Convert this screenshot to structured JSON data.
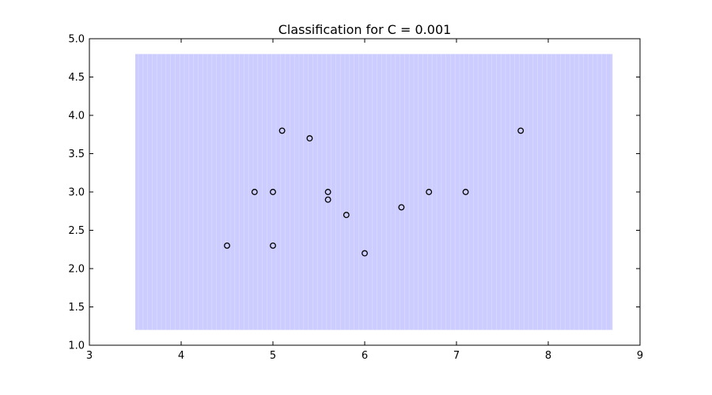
{
  "chart_data": {
    "type": "scatter",
    "title": "Classification for C = 0.001",
    "xlabel": "",
    "ylabel": "",
    "xlim": [
      3,
      9
    ],
    "ylim": [
      1.0,
      5.0
    ],
    "x_ticks": [
      3,
      4,
      5,
      6,
      7,
      8,
      9
    ],
    "x_tick_labels": [
      "3",
      "4",
      "5",
      "6",
      "7",
      "8",
      "9"
    ],
    "y_ticks": [
      1.0,
      1.5,
      2.0,
      2.5,
      3.0,
      3.5,
      4.0,
      4.5,
      5.0
    ],
    "y_tick_labels": [
      "1.0",
      "1.5",
      "2.0",
      "2.5",
      "3.0",
      "3.5",
      "4.0",
      "4.5",
      "5.0"
    ],
    "grid": false,
    "decision_region": {
      "x_range": [
        3.5,
        8.7
      ],
      "y_range": [
        1.2,
        4.8
      ],
      "color": "#ccccff"
    },
    "points": [
      {
        "x": 4.5,
        "y": 2.3
      },
      {
        "x": 4.8,
        "y": 3.0
      },
      {
        "x": 5.0,
        "y": 3.0
      },
      {
        "x": 5.0,
        "y": 2.3
      },
      {
        "x": 5.1,
        "y": 3.8
      },
      {
        "x": 5.4,
        "y": 3.7
      },
      {
        "x": 5.6,
        "y": 3.0
      },
      {
        "x": 5.6,
        "y": 2.9
      },
      {
        "x": 5.8,
        "y": 2.7
      },
      {
        "x": 6.0,
        "y": 2.2
      },
      {
        "x": 6.4,
        "y": 2.8
      },
      {
        "x": 6.7,
        "y": 3.0
      },
      {
        "x": 7.1,
        "y": 3.0
      },
      {
        "x": 7.7,
        "y": 3.8
      }
    ],
    "point_style": {
      "fill": "#ccccff",
      "stroke": "#000000"
    }
  }
}
